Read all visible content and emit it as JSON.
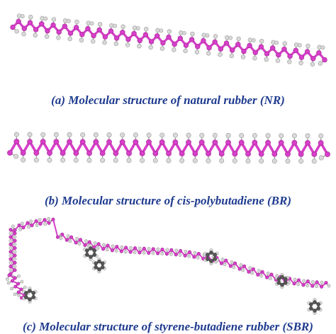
{
  "panels": [
    {
      "id": "nr",
      "caption": "(a) Molecular structure of natural rubber (NR)"
    },
    {
      "id": "br",
      "caption": "(b) Molecular structure of cis-polybutadiene (BR)"
    },
    {
      "id": "sbr",
      "caption": "(c) Molecular structure of styrene-butadiene rubber (SBR)"
    }
  ],
  "colors": {
    "carbon": "#d63fc7",
    "carbon_dark": "#a02594",
    "hydrogen": "#d9d9d9",
    "hydrogen_edge": "#9a9a9a",
    "ring": "#6e6e6e",
    "caption": "#1f3b8f"
  }
}
